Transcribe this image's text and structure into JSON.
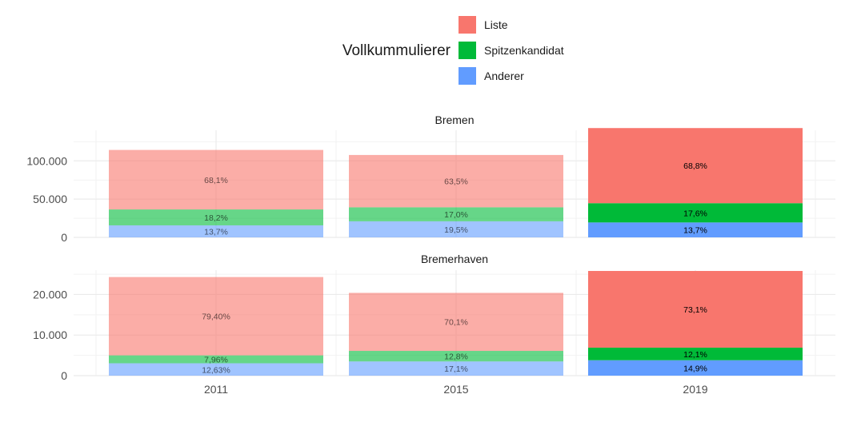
{
  "chart_data": {
    "type": "bar",
    "stacked": true,
    "legend": {
      "title": "Vollkummulierer",
      "position": "top",
      "entries": [
        {
          "name": "Liste",
          "color": "#F8766D"
        },
        {
          "name": "Spitzenkandidat",
          "color": "#00BA38"
        },
        {
          "name": "Anderer",
          "color": "#619CFF"
        }
      ]
    },
    "categories": [
      "2011",
      "2015",
      "2019"
    ],
    "highlighted_category": "2019",
    "faded_opacity": 0.6,
    "grid": true,
    "panels": [
      {
        "name": "Bremen",
        "ylim": [
          0,
          140000
        ],
        "yticks": [
          0,
          50000,
          100000
        ],
        "ytick_labels": [
          "0",
          "50.000",
          "100.000"
        ],
        "series": [
          {
            "name": "Anderer",
            "values": [
              15700,
              21000,
              19500
            ],
            "labels": [
              "13,7%",
              "19,5%",
              "13,7%"
            ]
          },
          {
            "name": "Spitzenkandidat",
            "values": [
              20800,
              18300,
              25200
            ],
            "labels": [
              "18,2%",
              "17,0%",
              "17,6%"
            ]
          },
          {
            "name": "Liste",
            "values": [
              77800,
              68400,
              98200
            ],
            "labels": [
              "68,1%",
              "63,5%",
              "68,8%"
            ]
          }
        ]
      },
      {
        "name": "Bremerhaven",
        "ylim": [
          0,
          26000
        ],
        "yticks": [
          0,
          10000,
          20000
        ],
        "ytick_labels": [
          "0",
          "10.000",
          "20.000"
        ],
        "series": [
          {
            "name": "Anderer",
            "values": [
              3050,
              3500,
              3800
            ],
            "labels": [
              "12,63%",
              "17,1%",
              "14,9%"
            ]
          },
          {
            "name": "Spitzenkandidat",
            "values": [
              1950,
              2600,
              3100
            ],
            "labels": [
              "7,96%",
              "12,8%",
              "12,1%"
            ]
          },
          {
            "name": "Liste",
            "values": [
              19300,
              14300,
              18900
            ],
            "labels": [
              "79,40%",
              "70,1%",
              "73,1%"
            ]
          }
        ]
      }
    ]
  }
}
